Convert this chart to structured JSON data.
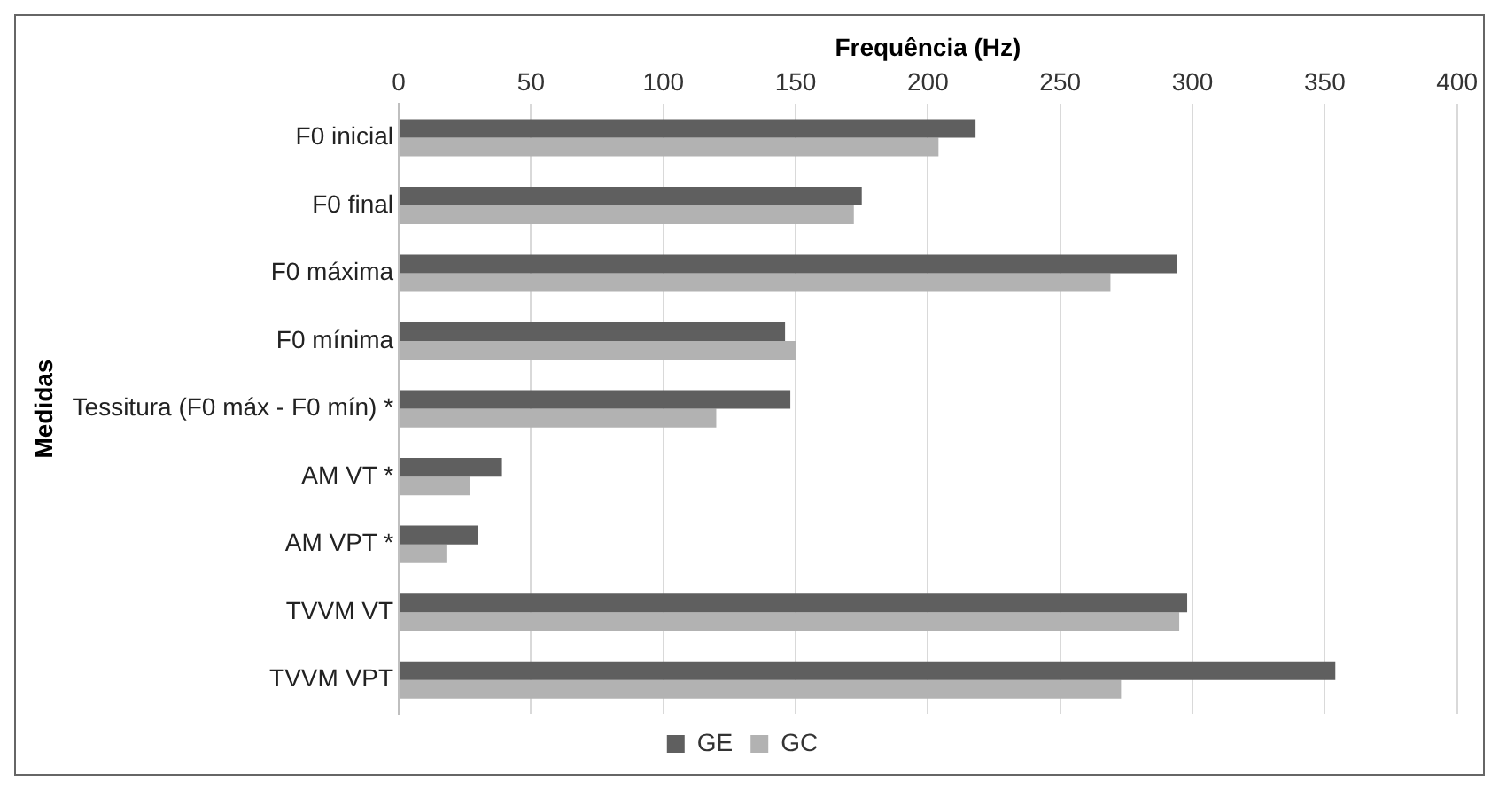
{
  "chart_data": {
    "type": "bar",
    "orientation": "horizontal",
    "xlabel": "Frequência (Hz)",
    "ylabel": "Medidas",
    "categories": [
      "F0 inicial",
      "F0 final",
      "F0 máxima",
      "F0 mínima",
      "Tessitura (F0 máx - F0 mín) *",
      "AM VT *",
      "AM VPT *",
      "TVVM VT",
      "TVVM VPT"
    ],
    "series": [
      {
        "name": "GE",
        "color": "#5f5f5f",
        "values": [
          218,
          175,
          294,
          146,
          148,
          39,
          30,
          298,
          354
        ]
      },
      {
        "name": "GC",
        "color": "#b2b2b2",
        "values": [
          204,
          172,
          269,
          150,
          120,
          27,
          18,
          295,
          273
        ]
      }
    ],
    "xlim": [
      0,
      400
    ],
    "xticks": [
      0,
      50,
      100,
      150,
      200,
      250,
      300,
      350,
      400
    ],
    "grid": "x",
    "legend": "bottom"
  }
}
